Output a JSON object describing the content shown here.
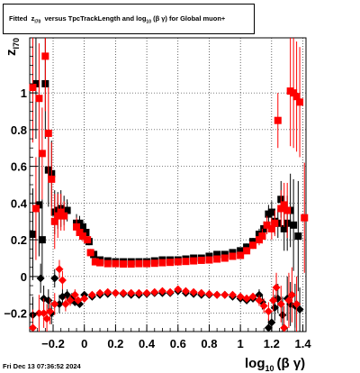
{
  "header": {
    "title_parts": {
      "fitted": "Fitted",
      "z": "z",
      "z_sub": "I70",
      "versus": "versus TpcTrackLength and log",
      "log_sub": "10",
      "beta_gamma": "(β  γ)",
      "rest": "for Global muon+"
    }
  },
  "footer": {
    "timestamp": "Fri Dec 13 07:36:52 2024"
  },
  "chart_data": {
    "type": "scatter",
    "xlim": [
      -0.35,
      1.42
    ],
    "ylim": [
      -0.3,
      1.3
    ],
    "x_ticks": [
      "−0.2",
      "0",
      "0.2",
      "0.4",
      "0.6",
      "0.8",
      "1",
      "1.2",
      "1.4"
    ],
    "x_tick_values": [
      -0.2,
      0,
      0.2,
      0.4,
      0.6,
      0.8,
      1,
      1.2,
      1.4
    ],
    "y_ticks": [
      "−0.2",
      "0",
      "0.2",
      "0.4",
      "0.6",
      "0.8",
      "1"
    ],
    "y_tick_values": [
      -0.2,
      0,
      0.2,
      0.4,
      0.6,
      0.8,
      1
    ],
    "xlabel_main": "log",
    "xlabel_sub": "10",
    "xlabel_rest": "(β γ)",
    "ylabel_main": "z",
    "ylabel_sub": "I70",
    "grid": true,
    "colors": {
      "black": "#000000",
      "red": "#ff0000"
    },
    "series": [
      {
        "color": "black",
        "marker": "square",
        "points": [
          [
            -0.33,
            0.23,
            0.25
          ],
          [
            -0.31,
            1.05,
            0.3
          ],
          [
            -0.29,
            0.39,
            0.28
          ],
          [
            -0.27,
            0.2,
            0.22
          ],
          [
            -0.25,
            1.05,
            0.3
          ],
          [
            -0.23,
            0.58,
            0.2
          ],
          [
            -0.21,
            0.56,
            0.18
          ],
          [
            -0.19,
            0.35,
            0.12
          ],
          [
            -0.17,
            0.36,
            0.1
          ],
          [
            -0.15,
            0.37,
            0.1
          ],
          [
            -0.13,
            0.36,
            0.08
          ],
          [
            -0.11,
            0.36,
            0.06
          ],
          [
            -0.05,
            0.29,
            0.05
          ],
          [
            -0.03,
            0.29,
            0.04
          ],
          [
            -0.01,
            0.27,
            0.03
          ],
          [
            0.01,
            0.24,
            0.02
          ],
          [
            0.03,
            0.19,
            0.02
          ],
          [
            0.06,
            0.12,
            0.01
          ],
          [
            0.1,
            0.09,
            0.01
          ],
          [
            0.15,
            0.085,
            0.008
          ],
          [
            0.2,
            0.08,
            0.008
          ],
          [
            0.25,
            0.08,
            0.008
          ],
          [
            0.3,
            0.08,
            0.008
          ],
          [
            0.35,
            0.08,
            0.008
          ],
          [
            0.4,
            0.08,
            0.008
          ],
          [
            0.45,
            0.085,
            0.008
          ],
          [
            0.5,
            0.09,
            0.008
          ],
          [
            0.55,
            0.09,
            0.008
          ],
          [
            0.6,
            0.09,
            0.008
          ],
          [
            0.65,
            0.095,
            0.008
          ],
          [
            0.7,
            0.1,
            0.008
          ],
          [
            0.75,
            0.1,
            0.008
          ],
          [
            0.8,
            0.11,
            0.01
          ],
          [
            0.85,
            0.12,
            0.01
          ],
          [
            0.9,
            0.12,
            0.01
          ],
          [
            0.95,
            0.13,
            0.01
          ],
          [
            1.0,
            0.14,
            0.01
          ],
          [
            1.04,
            0.16,
            0.02
          ],
          [
            1.08,
            0.19,
            0.02
          ],
          [
            1.12,
            0.23,
            0.03
          ],
          [
            1.15,
            0.26,
            0.04
          ],
          [
            1.18,
            0.34,
            0.05
          ],
          [
            1.2,
            0.35,
            0.06
          ],
          [
            1.22,
            0.3,
            0.07
          ],
          [
            1.24,
            0.29,
            0.08
          ],
          [
            1.26,
            0.42,
            0.1
          ],
          [
            1.28,
            0.26,
            0.12
          ],
          [
            1.3,
            0.29,
            0.15
          ],
          [
            1.32,
            0.36,
            0.2
          ],
          [
            1.34,
            0.28,
            0.25
          ],
          [
            1.37,
            0.22,
            0.3
          ]
        ]
      },
      {
        "color": "red",
        "marker": "square",
        "points": [
          [
            -0.33,
            1.03,
            0.3
          ],
          [
            -0.31,
            0.37,
            0.28
          ],
          [
            -0.29,
            0.97,
            0.3
          ],
          [
            -0.27,
            0.67,
            0.25
          ],
          [
            -0.25,
            1.2,
            0.3
          ],
          [
            -0.23,
            0.78,
            0.25
          ],
          [
            -0.21,
            0.53,
            0.2
          ],
          [
            -0.19,
            0.3,
            0.15
          ],
          [
            -0.17,
            0.33,
            0.12
          ],
          [
            -0.15,
            0.35,
            0.1
          ],
          [
            -0.13,
            0.33,
            0.08
          ],
          [
            -0.05,
            0.27,
            0.05
          ],
          [
            -0.03,
            0.24,
            0.04
          ],
          [
            -0.01,
            0.22,
            0.03
          ],
          [
            0.02,
            0.2,
            0.02
          ],
          [
            0.04,
            0.13,
            0.02
          ],
          [
            0.07,
            0.08,
            0.01
          ],
          [
            0.1,
            0.075,
            0.008
          ],
          [
            0.15,
            0.07,
            0.007
          ],
          [
            0.2,
            0.07,
            0.007
          ],
          [
            0.25,
            0.068,
            0.007
          ],
          [
            0.3,
            0.068,
            0.007
          ],
          [
            0.35,
            0.07,
            0.007
          ],
          [
            0.4,
            0.07,
            0.007
          ],
          [
            0.45,
            0.072,
            0.007
          ],
          [
            0.5,
            0.075,
            0.007
          ],
          [
            0.55,
            0.077,
            0.007
          ],
          [
            0.6,
            0.08,
            0.007
          ],
          [
            0.65,
            0.082,
            0.007
          ],
          [
            0.7,
            0.085,
            0.007
          ],
          [
            0.75,
            0.088,
            0.007
          ],
          [
            0.8,
            0.09,
            0.008
          ],
          [
            0.85,
            0.095,
            0.008
          ],
          [
            0.9,
            0.1,
            0.008
          ],
          [
            0.95,
            0.11,
            0.008
          ],
          [
            1.0,
            0.115,
            0.01
          ],
          [
            1.04,
            0.14,
            0.015
          ],
          [
            1.08,
            0.17,
            0.02
          ],
          [
            1.12,
            0.2,
            0.03
          ],
          [
            1.14,
            0.22,
            0.04
          ],
          [
            1.17,
            0.28,
            0.05
          ],
          [
            1.2,
            0.26,
            0.06
          ],
          [
            1.22,
            0.29,
            0.07
          ],
          [
            1.24,
            0.85,
            0.15
          ],
          [
            1.26,
            0.37,
            0.1
          ],
          [
            1.28,
            0.39,
            0.12
          ],
          [
            1.3,
            0.36,
            0.15
          ],
          [
            1.32,
            1.01,
            0.3
          ],
          [
            1.34,
            1.0,
            0.3
          ],
          [
            1.36,
            0.98,
            0.3
          ],
          [
            1.38,
            0.95,
            0.3
          ],
          [
            1.41,
            0.32,
            0.3
          ]
        ]
      },
      {
        "color": "black",
        "marker": "diamond",
        "points": [
          [
            -0.33,
            -0.21,
            0.1
          ],
          [
            -0.28,
            -0.01,
            0.08
          ],
          [
            -0.26,
            -0.12,
            0.07
          ],
          [
            -0.23,
            -0.13,
            0.06
          ],
          [
            -0.21,
            -0.2,
            0.06
          ],
          [
            -0.19,
            -0.01,
            0.05
          ],
          [
            -0.16,
            -0.15,
            0.05
          ],
          [
            -0.14,
            -0.11,
            0.04
          ],
          [
            -0.11,
            -0.1,
            0.03
          ],
          [
            -0.08,
            -0.12,
            0.03
          ],
          [
            -0.06,
            -0.14,
            0.02
          ],
          [
            -0.03,
            -0.15,
            0.02
          ],
          [
            0.0,
            -0.1,
            0.01
          ],
          [
            0.05,
            -0.11,
            0.01
          ],
          [
            0.1,
            -0.1,
            0.008
          ],
          [
            0.15,
            -0.095,
            0.008
          ],
          [
            0.2,
            -0.09,
            0.008
          ],
          [
            0.25,
            -0.095,
            0.008
          ],
          [
            0.3,
            -0.1,
            0.008
          ],
          [
            0.35,
            -0.1,
            0.008
          ],
          [
            0.4,
            -0.095,
            0.008
          ],
          [
            0.45,
            -0.09,
            0.008
          ],
          [
            0.5,
            -0.09,
            0.008
          ],
          [
            0.55,
            -0.09,
            0.008
          ],
          [
            0.6,
            -0.08,
            0.008
          ],
          [
            0.65,
            -0.09,
            0.008
          ],
          [
            0.7,
            -0.095,
            0.008
          ],
          [
            0.75,
            -0.1,
            0.008
          ],
          [
            0.8,
            -0.1,
            0.008
          ],
          [
            0.85,
            -0.1,
            0.008
          ],
          [
            0.9,
            -0.1,
            0.008
          ],
          [
            0.95,
            -0.11,
            0.01
          ],
          [
            1.0,
            -0.12,
            0.01
          ],
          [
            1.04,
            -0.13,
            0.02
          ],
          [
            1.08,
            -0.12,
            0.02
          ],
          [
            1.12,
            -0.1,
            0.03
          ],
          [
            1.14,
            -0.14,
            0.04
          ],
          [
            1.18,
            -0.28,
            0.05
          ],
          [
            1.2,
            -0.25,
            0.06
          ],
          [
            1.22,
            -0.17,
            0.07
          ],
          [
            1.24,
            -0.12,
            0.08
          ],
          [
            1.27,
            -0.21,
            0.1
          ],
          [
            1.3,
            -0.12,
            0.12
          ],
          [
            1.32,
            -0.15,
            0.12
          ],
          [
            1.35,
            -0.16,
            0.12
          ],
          [
            1.38,
            -0.18,
            0.12
          ]
        ]
      },
      {
        "color": "red",
        "marker": "diamond",
        "points": [
          [
            -0.33,
            -0.28,
            0.1
          ],
          [
            -0.29,
            -0.2,
            0.1
          ],
          [
            -0.26,
            -0.2,
            0.08
          ],
          [
            -0.24,
            -0.23,
            0.08
          ],
          [
            -0.22,
            -0.19,
            0.07
          ],
          [
            -0.19,
            -0.15,
            0.06
          ],
          [
            -0.16,
            0.04,
            0.05
          ],
          [
            -0.14,
            -0.02,
            0.05
          ],
          [
            -0.12,
            -0.15,
            0.04
          ],
          [
            -0.09,
            -0.13,
            0.03
          ],
          [
            -0.06,
            -0.1,
            0.03
          ],
          [
            -0.04,
            -0.13,
            0.02
          ],
          [
            0.0,
            -0.12,
            0.01
          ],
          [
            0.05,
            -0.1,
            0.01
          ],
          [
            0.1,
            -0.09,
            0.008
          ],
          [
            0.15,
            -0.085,
            0.008
          ],
          [
            0.2,
            -0.09,
            0.008
          ],
          [
            0.25,
            -0.09,
            0.008
          ],
          [
            0.3,
            -0.09,
            0.008
          ],
          [
            0.35,
            -0.09,
            0.008
          ],
          [
            0.4,
            -0.09,
            0.008
          ],
          [
            0.45,
            -0.085,
            0.008
          ],
          [
            0.5,
            -0.08,
            0.008
          ],
          [
            0.55,
            -0.085,
            0.008
          ],
          [
            0.6,
            -0.07,
            0.008
          ],
          [
            0.65,
            -0.08,
            0.008
          ],
          [
            0.7,
            -0.085,
            0.008
          ],
          [
            0.75,
            -0.09,
            0.008
          ],
          [
            0.8,
            -0.095,
            0.008
          ],
          [
            0.85,
            -0.1,
            0.008
          ],
          [
            0.9,
            -0.1,
            0.008
          ],
          [
            0.95,
            -0.1,
            0.01
          ],
          [
            1.0,
            -0.11,
            0.01
          ],
          [
            1.04,
            -0.12,
            0.02
          ],
          [
            1.08,
            -0.11,
            0.02
          ],
          [
            1.12,
            -0.13,
            0.03
          ],
          [
            1.15,
            -0.16,
            0.04
          ],
          [
            1.18,
            -0.19,
            0.05
          ],
          [
            1.21,
            -0.13,
            0.06
          ],
          [
            1.23,
            -0.06,
            0.08
          ],
          [
            1.26,
            -0.15,
            0.1
          ],
          [
            1.28,
            -0.28,
            0.12
          ],
          [
            1.31,
            -0.13,
            0.15
          ],
          [
            1.33,
            -0.1,
            0.15
          ],
          [
            1.36,
            -0.15,
            0.15
          ]
        ]
      }
    ]
  }
}
